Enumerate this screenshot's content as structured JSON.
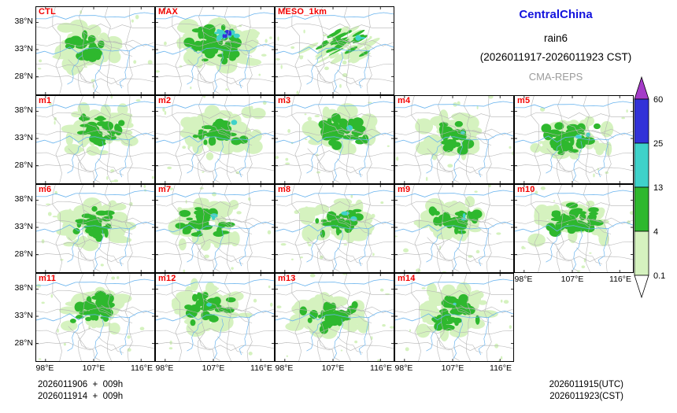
{
  "title": {
    "region": "CentralChina",
    "variable": "rain6",
    "period": "(2026011917-2026011923 CST)",
    "model": "CMA-REPS"
  },
  "panels": [
    {
      "label": "CTL"
    },
    {
      "label": "MAX"
    },
    {
      "label": "MESO_1km"
    },
    {
      "label": "m1"
    },
    {
      "label": "m2"
    },
    {
      "label": "m3"
    },
    {
      "label": "m4"
    },
    {
      "label": "m5"
    },
    {
      "label": "m6"
    },
    {
      "label": "m7"
    },
    {
      "label": "m8"
    },
    {
      "label": "m9"
    },
    {
      "label": "m10"
    },
    {
      "label": "m11"
    },
    {
      "label": "m12"
    },
    {
      "label": "m13"
    },
    {
      "label": "m14"
    }
  ],
  "axes": {
    "lat_ticks": [
      "38°N",
      "33°N",
      "28°N"
    ],
    "lon_ticks": [
      "98°E",
      "107°E",
      "116°E"
    ]
  },
  "colorbar": {
    "levels": [
      "60",
      "25",
      "13",
      "4",
      "0.1"
    ],
    "colors": {
      "light": "#d5f2bf",
      "green": "#2eb82e",
      "cyan": "#3fd2ca",
      "blue": "#3232d8",
      "purple": "#a43bc8"
    }
  },
  "map_colors": {
    "boundary": "#b5b5b5",
    "river": "#6ab4ee"
  },
  "footer": {
    "left_line1": "2026011906  +  009h",
    "left_line2": "2026011914  +  009h",
    "right_line1": "2026011915(UTC)",
    "right_line2": "2026011923(CST)"
  },
  "chart_data": {
    "type": "heatmap",
    "title": "CentralChina rain6 (2026011917-2026011923 CST)",
    "subtitle": "CMA-REPS",
    "panels": [
      "CTL",
      "MAX",
      "MESO_1km",
      "m1",
      "m2",
      "m3",
      "m4",
      "m5",
      "m6",
      "m7",
      "m8",
      "m9",
      "m10",
      "m11",
      "m12",
      "m13",
      "m14"
    ],
    "lon_ticks": [
      "98°E",
      "107°E",
      "116°E"
    ],
    "lat_ticks": [
      "38°N",
      "33°N",
      "28°N"
    ],
    "levels": [
      0.1,
      4,
      13,
      25,
      60
    ],
    "level_colors": [
      "#d5f2bf",
      "#2eb82e",
      "#3fd2ca",
      "#3232d8",
      "#a43bc8"
    ],
    "annotations": [
      "2026011906 + 009h",
      "2026011914 + 009h",
      "2026011915(UTC)",
      "2026011923(CST)"
    ]
  }
}
